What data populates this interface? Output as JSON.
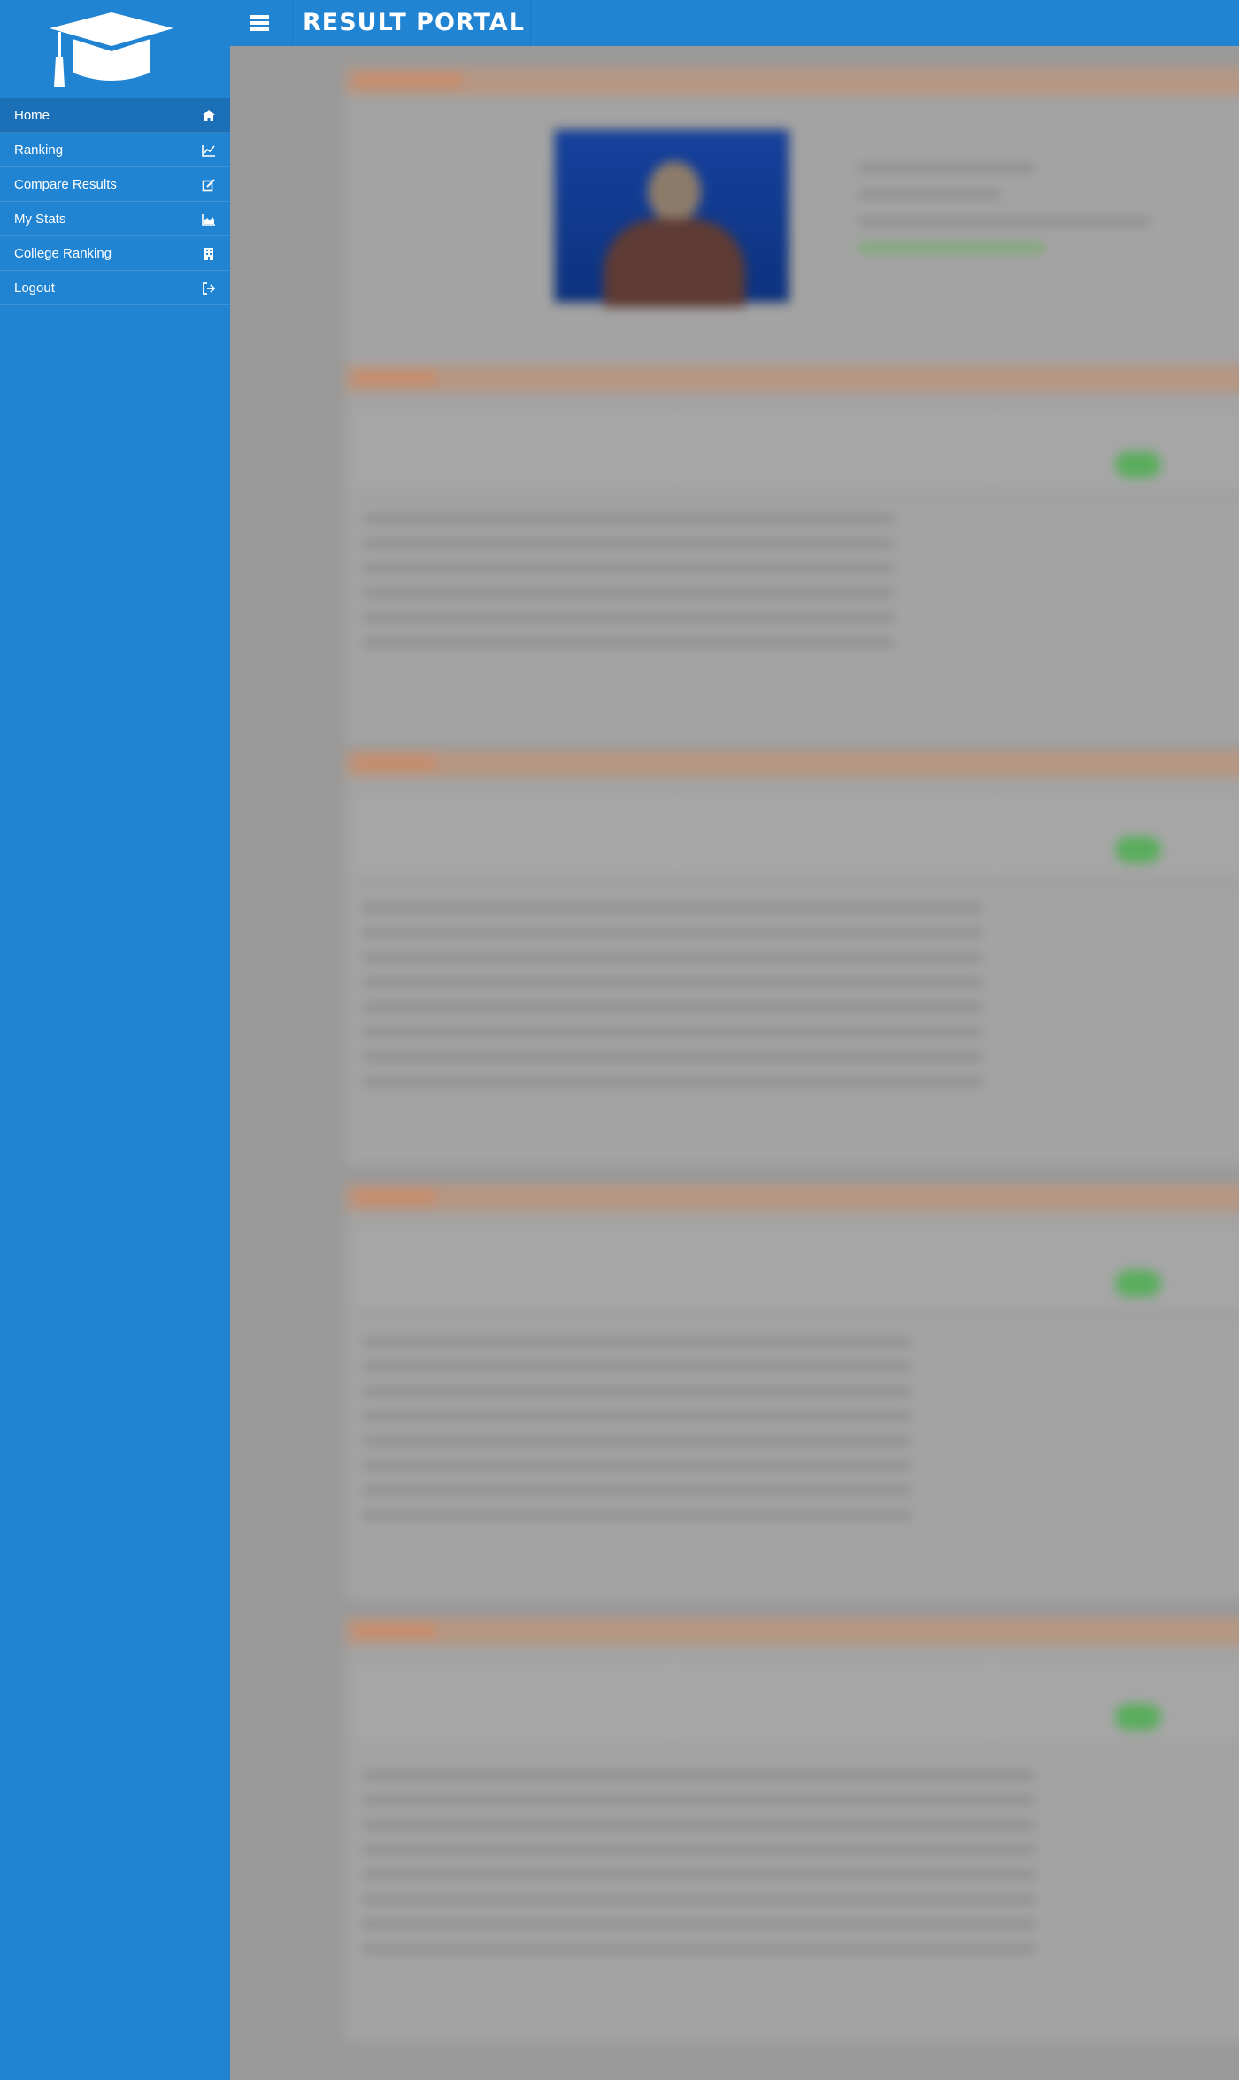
{
  "app": {
    "title": "RESULT PORTAL",
    "logo_icon": "graduation-cap-icon",
    "menu_icon": "hamburger-menu-icon",
    "accent_color": "#2184d3",
    "active_color": "#1b6fb6"
  },
  "sidebar": {
    "items": [
      {
        "label": "Home",
        "icon": "home-icon",
        "active": true
      },
      {
        "label": "Ranking",
        "icon": "line-chart-icon",
        "active": false
      },
      {
        "label": "Compare Results",
        "icon": "edit-icon",
        "active": false
      },
      {
        "label": "My Stats",
        "icon": "area-chart-icon",
        "active": false
      },
      {
        "label": "College Ranking",
        "icon": "building-icon",
        "active": false
      },
      {
        "label": "Logout",
        "icon": "sign-out-icon",
        "active": false
      }
    ]
  },
  "content": {
    "blurred": true
  }
}
